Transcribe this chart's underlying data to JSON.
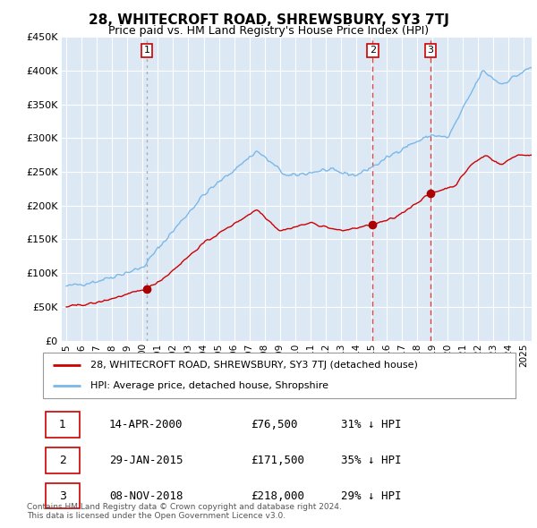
{
  "title": "28, WHITECROFT ROAD, SHREWSBURY, SY3 7TJ",
  "subtitle": "Price paid vs. HM Land Registry's House Price Index (HPI)",
  "background_color": "#dce9f5",
  "plot_bg_color": "#dce9f5",
  "hpi_color": "#7ab8e8",
  "price_color": "#cc0000",
  "marker_color": "#aa0000",
  "ylim": [
    0,
    450000
  ],
  "yticks": [
    0,
    50000,
    100000,
    150000,
    200000,
    250000,
    300000,
    350000,
    400000,
    450000
  ],
  "xlim_start": 1994.7,
  "xlim_end": 2025.5,
  "sales": [
    {
      "label": "1",
      "date_num": 2000.28,
      "price": 76500
    },
    {
      "label": "2",
      "date_num": 2015.08,
      "price": 171500
    },
    {
      "label": "3",
      "date_num": 2018.86,
      "price": 218000
    }
  ],
  "sale_dates_str": [
    "14-APR-2000",
    "29-JAN-2015",
    "08-NOV-2018"
  ],
  "sale_prices_str": [
    "£76,500",
    "£171,500",
    "£218,000"
  ],
  "sale_hpi_str": [
    "31% ↓ HPI",
    "35% ↓ HPI",
    "29% ↓ HPI"
  ],
  "legend_line1": "28, WHITECROFT ROAD, SHREWSBURY, SY3 7TJ (detached house)",
  "legend_line2": "HPI: Average price, detached house, Shropshire",
  "footnote": "Contains HM Land Registry data © Crown copyright and database right 2024.\nThis data is licensed under the Open Government Licence v3.0.",
  "xticks": [
    1995,
    1996,
    1997,
    1998,
    1999,
    2000,
    2001,
    2002,
    2003,
    2004,
    2005,
    2006,
    2007,
    2008,
    2009,
    2010,
    2011,
    2012,
    2013,
    2014,
    2015,
    2016,
    2017,
    2018,
    2019,
    2020,
    2021,
    2022,
    2023,
    2024,
    2025
  ]
}
